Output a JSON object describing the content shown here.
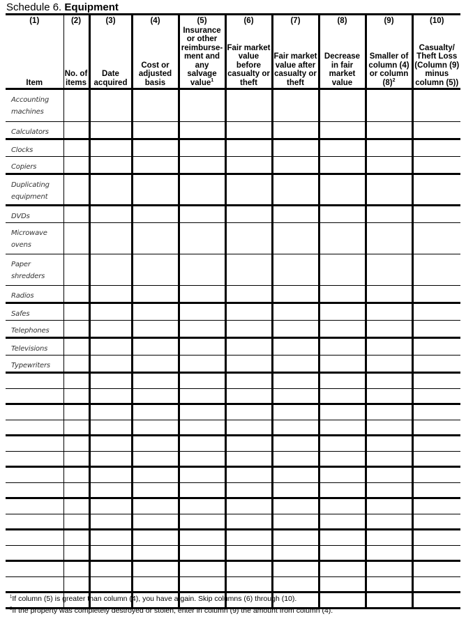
{
  "title": {
    "prefix": "Schedule 6.",
    "bold": "Equipment"
  },
  "columns": [
    {
      "num": "(1)",
      "label": "Item"
    },
    {
      "num": "(2)",
      "label": "No. of items"
    },
    {
      "num": "(3)",
      "label": "Date acquired"
    },
    {
      "num": "(4)",
      "label": "Cost or adjusted basis"
    },
    {
      "num": "(5)",
      "label": "Insurance or other reimburse-ment and any salvage value",
      "sup": "1"
    },
    {
      "num": "(6)",
      "label": "Fair market value before casualty or theft"
    },
    {
      "num": "(7)",
      "label": "Fair market value after casualty or theft"
    },
    {
      "num": "(8)",
      "label": "Decrease in fair market value"
    },
    {
      "num": "(9)",
      "label": "Smaller of column (4) or column (8)",
      "sup": "2"
    },
    {
      "num": "(10)",
      "label": "Casualty/ Theft Loss (Column (9) minus column (5))"
    }
  ],
  "items": [
    "Accounting machines",
    "Calculators",
    "Clocks",
    "Copiers",
    "Duplicating equipment",
    "DVDs",
    "Microwave ovens",
    "Paper shredders",
    "Radios",
    "Safes",
    "Telephones",
    "Televisions",
    "Typewriters"
  ],
  "footnotes": [
    {
      "mark": "1",
      "text": "If column (5) is greater than column (4), you have a gain. Skip columns (6) through (10)."
    },
    {
      "mark": "2",
      "text": "If the property was completely destroyed or stolen, enter in column (9) the amount from column (4)."
    }
  ]
}
